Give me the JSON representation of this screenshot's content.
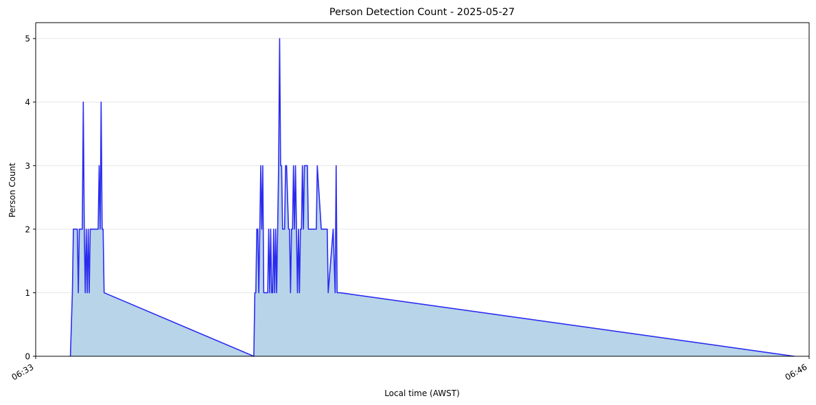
{
  "chart_data": {
    "type": "area",
    "title": "Person Detection Count - 2025-05-27",
    "xlabel": "Local time (AWST)",
    "ylabel": "Person Count",
    "x_tick_labels": [
      "06:33",
      "06:46"
    ],
    "y_ticks": [
      0,
      1,
      2,
      3,
      4,
      5
    ],
    "ylim": [
      0,
      5.25
    ],
    "xlim": [
      "06:33",
      "06:46"
    ],
    "grid": "horizontal",
    "line_color": "#2b2bf0",
    "fill_color": "#b8d4e8",
    "series": [
      {
        "x": [
          "06:33:35",
          "06:33:37",
          "06:33:38",
          "06:33:42",
          "06:33:43",
          "06:33:44",
          "06:33:47",
          "06:33:48",
          "06:33:49",
          "06:33:50",
          "06:33:51",
          "06:33:52",
          "06:33:53",
          "06:33:54",
          "06:33:55",
          "06:33:56",
          "06:33:58",
          "06:34:03",
          "06:34:04",
          "06:34:05",
          "06:34:06",
          "06:34:07",
          "06:34:08",
          "06:34:09",
          "06:36:40",
          "06:36:41",
          "06:36:42",
          "06:36:43",
          "06:36:44",
          "06:36:45",
          "06:36:46",
          "06:36:47",
          "06:36:48",
          "06:36:49",
          "06:36:50",
          "06:36:51",
          "06:36:52",
          "06:36:53",
          "06:36:54",
          "06:36:55",
          "06:36:56",
          "06:36:57",
          "06:36:58",
          "06:36:59",
          "06:37:00",
          "06:37:01",
          "06:37:02",
          "06:37:03",
          "06:37:04",
          "06:37:05",
          "06:37:06",
          "06:37:07",
          "06:37:08",
          "06:37:09",
          "06:37:10",
          "06:37:11",
          "06:37:12",
          "06:37:13",
          "06:37:15",
          "06:37:16",
          "06:37:17",
          "06:37:18",
          "06:37:19",
          "06:37:20",
          "06:37:21",
          "06:37:22",
          "06:37:23",
          "06:37:24",
          "06:37:25",
          "06:37:26",
          "06:37:27",
          "06:37:28",
          "06:37:29",
          "06:37:30",
          "06:37:31",
          "06:37:32",
          "06:37:33",
          "06:37:34",
          "06:37:35",
          "06:37:36",
          "06:37:38",
          "06:37:40",
          "06:37:41",
          "06:37:42",
          "06:37:43",
          "06:37:44",
          "06:37:48",
          "06:37:49",
          "06:37:50",
          "06:37:51",
          "06:37:52",
          "06:37:53",
          "06:37:54",
          "06:37:55",
          "06:38:00",
          "06:38:02",
          "06:38:03",
          "06:38:04",
          "06:38:05",
          "06:38:06",
          "06:38:07",
          "06:45:45"
        ],
        "y": [
          0,
          1,
          2,
          2,
          1,
          2,
          2,
          4,
          2,
          1,
          2,
          1,
          2,
          1,
          2,
          2,
          2,
          2,
          3,
          2,
          4,
          2,
          2,
          1,
          0,
          1,
          1,
          2,
          2,
          1,
          2,
          3,
          2,
          3,
          1,
          1,
          1,
          1,
          1,
          2,
          1,
          2,
          1,
          1,
          2,
          1,
          2,
          1,
          2,
          3,
          5,
          3,
          3,
          2,
          2,
          2,
          3,
          3,
          2,
          2,
          1,
          2,
          2,
          3,
          2,
          3,
          2,
          1,
          2,
          1,
          2,
          2,
          3,
          2,
          3,
          3,
          3,
          3,
          2,
          2,
          2,
          2,
          2,
          2,
          2,
          3,
          2,
          2,
          2,
          2,
          2,
          2,
          2,
          1,
          2,
          1,
          3,
          1,
          1,
          1,
          1,
          0
        ]
      }
    ]
  }
}
